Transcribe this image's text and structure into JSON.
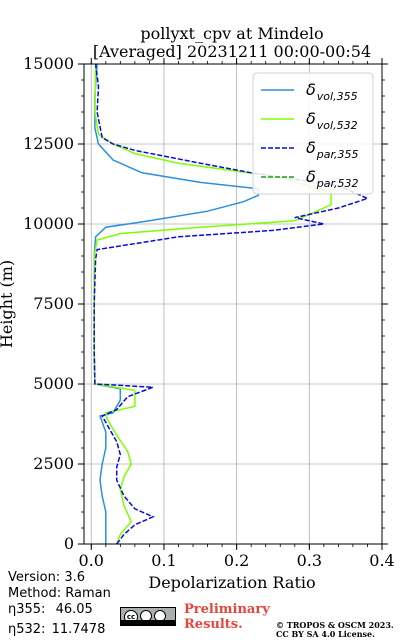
{
  "chart_data": {
    "type": "line",
    "title_line1": "pollyxt_cpv at Mindelo",
    "title_line2": "[Averaged] 20231211 00:00-00:54",
    "xlabel": "Depolarization Ratio",
    "ylabel": "Height (m)",
    "xlim": [
      -0.01,
      0.4
    ],
    "ylim": [
      0,
      15000
    ],
    "xticks": [
      0.0,
      0.1,
      0.2,
      0.3,
      0.4
    ],
    "xtick_labels": [
      "0.0",
      "0.1",
      "0.2",
      "0.3",
      "0.4"
    ],
    "yticks": [
      0,
      2500,
      5000,
      7500,
      10000,
      12500,
      15000
    ],
    "ytick_labels": [
      "0",
      "2500",
      "5000",
      "7500",
      "10000",
      "12500",
      "15000"
    ],
    "grid": true,
    "legend_position": "top-right",
    "series": [
      {
        "name": "δ_vol,355",
        "legend_main": "δ",
        "legend_sub": "vol,355",
        "color": "#2a8fe0",
        "dash": "solid",
        "points": [
          [
            0.02,
            0
          ],
          [
            0.02,
            500
          ],
          [
            0.02,
            1000
          ],
          [
            0.015,
            1500
          ],
          [
            0.012,
            2000
          ],
          [
            0.015,
            2500
          ],
          [
            0.02,
            3000
          ],
          [
            0.02,
            3500
          ],
          [
            0.012,
            4000
          ],
          [
            0.03,
            4100
          ],
          [
            0.04,
            4500
          ],
          [
            0.04,
            4850
          ],
          [
            0.005,
            5000
          ],
          [
            0.004,
            6000
          ],
          [
            0.004,
            7500
          ],
          [
            0.004,
            9000
          ],
          [
            0.006,
            9600
          ],
          [
            0.02,
            9900
          ],
          [
            0.08,
            10100
          ],
          [
            0.16,
            10400
          ],
          [
            0.21,
            10700
          ],
          [
            0.23,
            10900
          ],
          [
            0.23,
            11100
          ],
          [
            0.15,
            11300
          ],
          [
            0.07,
            11600
          ],
          [
            0.03,
            12000
          ],
          [
            0.01,
            12500
          ],
          [
            0.005,
            13000
          ],
          [
            0.005,
            14000
          ],
          [
            0.008,
            15000
          ]
        ]
      },
      {
        "name": "δ_vol,532",
        "legend_main": "δ",
        "legend_sub": "vol,532",
        "color": "#7fff00",
        "dash": "solid",
        "points": [
          [
            0.035,
            0
          ],
          [
            0.04,
            300
          ],
          [
            0.055,
            700
          ],
          [
            0.045,
            1200
          ],
          [
            0.04,
            1700
          ],
          [
            0.045,
            2100
          ],
          [
            0.055,
            2500
          ],
          [
            0.05,
            2900
          ],
          [
            0.035,
            3400
          ],
          [
            0.022,
            3900
          ],
          [
            0.02,
            4100
          ],
          [
            0.06,
            4300
          ],
          [
            0.06,
            4800
          ],
          [
            0.005,
            5000
          ],
          [
            0.004,
            6000
          ],
          [
            0.004,
            7500
          ],
          [
            0.004,
            9000
          ],
          [
            0.008,
            9500
          ],
          [
            0.04,
            9700
          ],
          [
            0.15,
            9900
          ],
          [
            0.28,
            10100
          ],
          [
            0.33,
            10600
          ],
          [
            0.33,
            11000
          ],
          [
            0.25,
            11500
          ],
          [
            0.12,
            11900
          ],
          [
            0.06,
            12200
          ],
          [
            0.03,
            12500
          ],
          [
            0.01,
            12800
          ],
          [
            0.005,
            13500
          ],
          [
            0.006,
            15000
          ]
        ]
      },
      {
        "name": "δ_par,355",
        "legend_main": "δ",
        "legend_sub": "par,355",
        "color": "#0b0bd6",
        "dash": "dashed",
        "points": [
          [
            0.035,
            0
          ],
          [
            0.045,
            300
          ],
          [
            0.06,
            600
          ],
          [
            0.085,
            850
          ],
          [
            0.06,
            1100
          ],
          [
            0.045,
            1500
          ],
          [
            0.035,
            2000
          ],
          [
            0.035,
            2400
          ],
          [
            0.04,
            2800
          ],
          [
            0.035,
            3200
          ],
          [
            0.025,
            3600
          ],
          [
            0.015,
            4000
          ],
          [
            0.035,
            4200
          ],
          [
            0.05,
            4600
          ],
          [
            0.085,
            4900
          ],
          [
            0.005,
            5000
          ],
          [
            0.004,
            6000
          ],
          [
            0.004,
            7500
          ],
          [
            0.006,
            8900
          ],
          [
            0.008,
            9200
          ],
          [
            0.12,
            9600
          ],
          [
            0.25,
            9800
          ],
          [
            0.32,
            10000
          ],
          [
            0.28,
            10200
          ],
          [
            0.34,
            10500
          ],
          [
            0.38,
            10800
          ],
          [
            0.34,
            11200
          ],
          [
            0.22,
            11600
          ],
          [
            0.15,
            11900
          ],
          [
            0.06,
            12300
          ],
          [
            0.03,
            12500
          ],
          [
            0.015,
            12700
          ],
          [
            0.008,
            13500
          ],
          [
            0.01,
            14300
          ],
          [
            0.006,
            15000
          ]
        ]
      },
      {
        "name": "δ_par,532",
        "legend_main": "δ",
        "legend_sub": "par,532",
        "color": "#1f9e1f",
        "dash": "dashed",
        "points": []
      }
    ]
  },
  "footer": {
    "version": "Version: 3.6",
    "method": "Method: Raman",
    "eta355_label": "η355:",
    "eta355_value": "46.05",
    "eta532_label": "η532:",
    "eta532_value": "11.7478",
    "preliminary_line1": "Preliminary",
    "preliminary_line2": "Results.",
    "copyright_line1": "© TROPOS & OSCM 2023.",
    "copyright_line2": "CC BY SA 4.0 License.",
    "cc_badge": "cc"
  }
}
